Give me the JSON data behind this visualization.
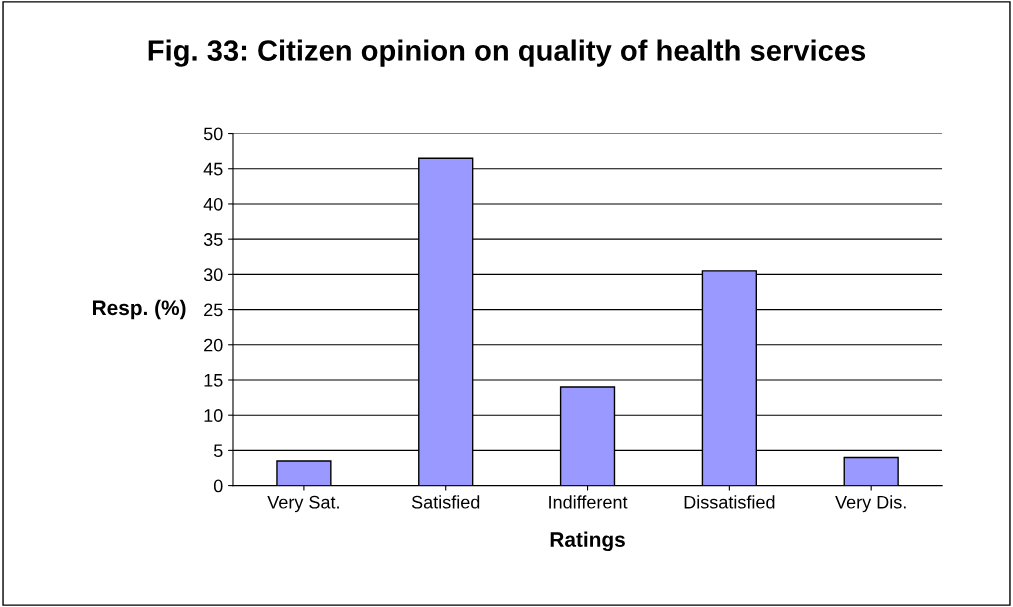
{
  "chart_data": {
    "type": "bar",
    "title": "Fig. 33: Citizen opinion on quality of health services",
    "xlabel": "Ratings",
    "ylabel": "Resp. (%)",
    "categories": [
      "Very Sat.",
      "Satisfied",
      "Indifferent",
      "Dissatisfied",
      "Very Dis."
    ],
    "values": [
      3.5,
      46.5,
      14,
      30.5,
      4
    ],
    "color": "#9999ff",
    "ylim": [
      0,
      50
    ],
    "yticks": [
      0,
      5,
      10,
      15,
      20,
      25,
      30,
      35,
      40,
      45,
      50
    ],
    "grid": "y",
    "legend": false
  }
}
